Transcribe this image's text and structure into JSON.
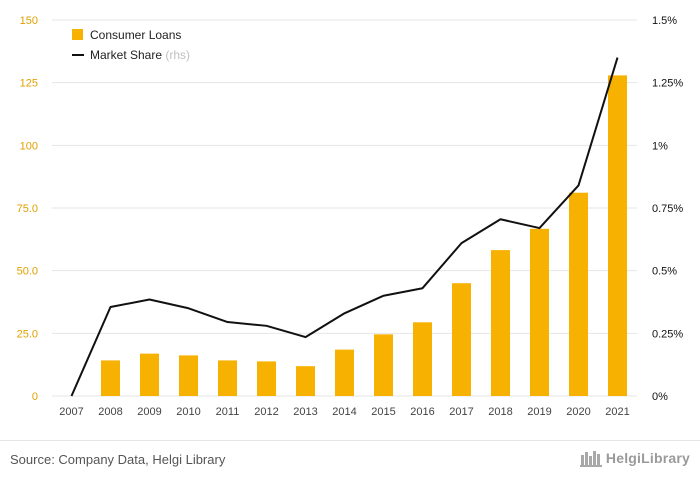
{
  "chart_data": {
    "type": "bar+line",
    "categories": [
      "2007",
      "2008",
      "2009",
      "2010",
      "2011",
      "2012",
      "2013",
      "2014",
      "2015",
      "2016",
      "2017",
      "2018",
      "2019",
      "2020",
      "2021"
    ],
    "series": [
      {
        "name": "Consumer Loans",
        "type": "bar",
        "axis": "left",
        "color": "#f7b100",
        "values": [
          0,
          14.2,
          16.9,
          16.2,
          14.2,
          13.8,
          11.9,
          18.5,
          24.6,
          29.4,
          45.0,
          58.2,
          66.7,
          81.1,
          127.9
        ]
      },
      {
        "name": "Market Share",
        "name_suffix": "(rhs)",
        "type": "line",
        "axis": "right",
        "color": "#111111",
        "values": [
          0.0,
          0.355,
          0.385,
          0.35,
          0.295,
          0.28,
          0.235,
          0.33,
          0.4,
          0.43,
          0.61,
          0.705,
          0.67,
          0.84,
          1.35
        ]
      }
    ],
    "left_axis": {
      "min": 0,
      "max": 150,
      "ticks": [
        0,
        25,
        50,
        75,
        100,
        125,
        150
      ],
      "tick_labels": [
        "0",
        "25.0",
        "50.0",
        "75.0",
        "100",
        "125",
        "150"
      ]
    },
    "right_axis": {
      "min": 0,
      "max": 1.5,
      "ticks": [
        0,
        0.25,
        0.5,
        0.75,
        1,
        1.25,
        1.5
      ],
      "tick_labels": [
        "0%",
        "0.25%",
        "0.5%",
        "0.75%",
        "1%",
        "1.25%",
        "1.5%"
      ]
    },
    "grid": true,
    "legend_position": "top-left"
  },
  "footer": {
    "source": "Source: Company Data, Helgi Library",
    "brand": "HelgiLibrary"
  },
  "colors": {
    "bar": "#f7b100",
    "line": "#111111",
    "left_tick": "#e0a100",
    "grid": "#e6e6e6"
  },
  "icons": {
    "logo": "bookshelf-icon"
  }
}
